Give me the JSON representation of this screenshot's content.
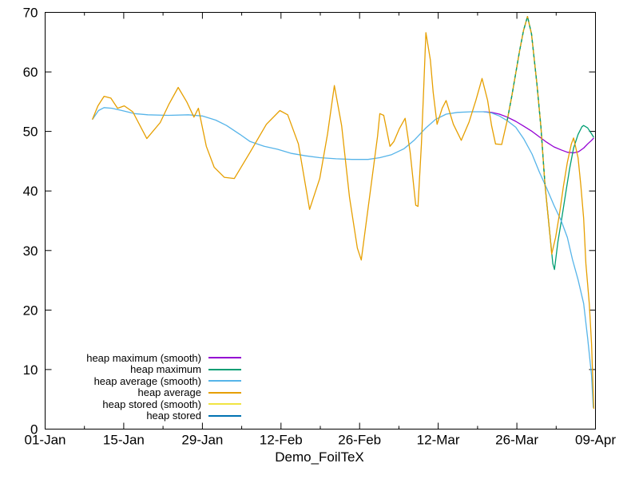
{
  "figure": {
    "background": "#ffffff",
    "border_color": "#000000",
    "text_color": "#000000"
  },
  "chart_data": {
    "type": "line",
    "title": "",
    "xlabel": "Demo_FoilTeX",
    "ylabel": "",
    "grid": false,
    "legend_position": "bottom-left-inside",
    "x_axis": {
      "range_days": [
        0,
        98
      ],
      "ticks": [
        {
          "day": 0,
          "label": "01-Jan"
        },
        {
          "day": 14,
          "label": "15-Jan"
        },
        {
          "day": 28,
          "label": "29-Jan"
        },
        {
          "day": 42,
          "label": "12-Feb"
        },
        {
          "day": 56,
          "label": "26-Feb"
        },
        {
          "day": 70,
          "label": "12-Mar"
        },
        {
          "day": 84,
          "label": "26-Mar"
        },
        {
          "day": 98,
          "label": "09-Apr"
        }
      ],
      "minor_tick_days": [
        7,
        21,
        35,
        49,
        63,
        77,
        91
      ]
    },
    "y_axis": {
      "range": [
        0,
        70
      ],
      "ticks": [
        0,
        10,
        20,
        30,
        40,
        50,
        60,
        70
      ]
    },
    "series": [
      {
        "name": "heap maximum (smooth)",
        "color": "#9400d3",
        "points": [
          [
            78.1,
            53.3
          ],
          [
            79.5,
            53.2
          ],
          [
            80.9,
            52.9
          ],
          [
            82.3,
            52.4
          ],
          [
            83.8,
            51.7
          ],
          [
            85.2,
            50.9
          ],
          [
            86.7,
            50.0
          ],
          [
            88.0,
            49.1
          ],
          [
            89.3,
            48.2
          ],
          [
            90.6,
            47.4
          ],
          [
            91.9,
            46.9
          ],
          [
            93.0,
            46.5
          ],
          [
            94.1,
            46.4
          ],
          [
            95.0,
            46.6
          ],
          [
            95.9,
            47.2
          ],
          [
            96.6,
            47.9
          ],
          [
            97.3,
            48.5
          ],
          [
            97.7,
            48.9
          ]
        ]
      },
      {
        "name": "heap maximum",
        "color": "#009e73",
        "dash_overlap_day_range": [
          82.3,
          89.0
        ],
        "points": [
          [
            82.3,
            51.9
          ],
          [
            83.1,
            55.9
          ],
          [
            84.5,
            63.6
          ],
          [
            85.2,
            67.0
          ],
          [
            85.9,
            69.3
          ],
          [
            86.6,
            66.4
          ],
          [
            87.6,
            57.7
          ],
          [
            88.3,
            50.6
          ],
          [
            89.0,
            41.2
          ],
          [
            89.9,
            32.5
          ],
          [
            90.4,
            27.8
          ],
          [
            90.7,
            26.8
          ],
          [
            91.3,
            31.4
          ],
          [
            92.0,
            35.4
          ],
          [
            92.7,
            39.6
          ],
          [
            93.4,
            43.8
          ],
          [
            94.1,
            47.2
          ],
          [
            94.9,
            49.5
          ],
          [
            95.6,
            50.8
          ],
          [
            95.9,
            51.0
          ],
          [
            96.6,
            50.6
          ],
          [
            97.3,
            49.6
          ],
          [
            97.7,
            49.0
          ]
        ]
      },
      {
        "name": "heap average (smooth)",
        "color": "#56b4e9",
        "points": [
          [
            8.4,
            52.0
          ],
          [
            9.5,
            53.5
          ],
          [
            10.5,
            54.0
          ],
          [
            11.9,
            53.9
          ],
          [
            13.7,
            53.5
          ],
          [
            15.9,
            53.0
          ],
          [
            18.3,
            52.8
          ],
          [
            21.9,
            52.7
          ],
          [
            25.5,
            52.8
          ],
          [
            28.0,
            52.6
          ],
          [
            30.4,
            51.9
          ],
          [
            32.3,
            51.0
          ],
          [
            34.7,
            49.5
          ],
          [
            36.5,
            48.3
          ],
          [
            39.0,
            47.5
          ],
          [
            41.4,
            47.0
          ],
          [
            43.9,
            46.3
          ],
          [
            46.4,
            45.9
          ],
          [
            48.9,
            45.6
          ],
          [
            51.8,
            45.4
          ],
          [
            54.6,
            45.3
          ],
          [
            57.5,
            45.3
          ],
          [
            59.6,
            45.6
          ],
          [
            61.7,
            46.1
          ],
          [
            63.9,
            47.1
          ],
          [
            65.7,
            48.5
          ],
          [
            67.7,
            50.5
          ],
          [
            69.5,
            52.0
          ],
          [
            71.4,
            52.9
          ],
          [
            73.4,
            53.2
          ],
          [
            75.9,
            53.3
          ],
          [
            78.1,
            53.3
          ],
          [
            79.5,
            53.1
          ],
          [
            80.9,
            52.6
          ],
          [
            82.3,
            51.8
          ],
          [
            83.8,
            50.7
          ],
          [
            85.2,
            48.8
          ],
          [
            86.7,
            46.2
          ],
          [
            88.0,
            43.2
          ],
          [
            89.3,
            40.5
          ],
          [
            90.6,
            37.6
          ],
          [
            91.9,
            35.0
          ],
          [
            93.0,
            32.2
          ],
          [
            93.9,
            28.5
          ],
          [
            94.9,
            25.1
          ],
          [
            95.9,
            21.1
          ],
          [
            96.6,
            15.3
          ],
          [
            97.3,
            9.0
          ],
          [
            97.6,
            3.6
          ]
        ]
      },
      {
        "name": "heap average",
        "color": "#e69f00",
        "points": [
          [
            8.4,
            52.0
          ],
          [
            9.4,
            54.3
          ],
          [
            10.5,
            55.9
          ],
          [
            11.7,
            55.6
          ],
          [
            12.9,
            53.9
          ],
          [
            14.1,
            54.3
          ],
          [
            15.6,
            53.3
          ],
          [
            18.1,
            48.8
          ],
          [
            20.5,
            51.5
          ],
          [
            22.0,
            54.5
          ],
          [
            23.7,
            57.4
          ],
          [
            25.2,
            55.0
          ],
          [
            26.5,
            52.4
          ],
          [
            27.3,
            53.9
          ],
          [
            28.7,
            47.5
          ],
          [
            30.1,
            44.0
          ],
          [
            31.9,
            42.3
          ],
          [
            33.7,
            42.1
          ],
          [
            36.5,
            46.5
          ],
          [
            39.4,
            51.2
          ],
          [
            41.8,
            53.5
          ],
          [
            43.2,
            52.8
          ],
          [
            45.1,
            47.9
          ],
          [
            47.1,
            36.9
          ],
          [
            48.9,
            42.1
          ],
          [
            50.3,
            49.6
          ],
          [
            51.5,
            57.7
          ],
          [
            52.8,
            51.0
          ],
          [
            54.2,
            38.9
          ],
          [
            55.6,
            30.4
          ],
          [
            56.3,
            28.4
          ],
          [
            57.7,
            38.5
          ],
          [
            59.2,
            49.2
          ],
          [
            59.6,
            53.0
          ],
          [
            60.3,
            52.7
          ],
          [
            61.4,
            47.5
          ],
          [
            62.1,
            48.3
          ],
          [
            63.1,
            50.5
          ],
          [
            64.1,
            52.2
          ],
          [
            65.0,
            46.5
          ],
          [
            66.0,
            37.6
          ],
          [
            66.4,
            37.4
          ],
          [
            67.0,
            47.9
          ],
          [
            67.4,
            57.0
          ],
          [
            67.8,
            66.6
          ],
          [
            68.6,
            62.0
          ],
          [
            69.1,
            56.6
          ],
          [
            69.8,
            51.2
          ],
          [
            70.7,
            53.9
          ],
          [
            71.4,
            55.2
          ],
          [
            72.7,
            51.2
          ],
          [
            74.1,
            48.5
          ],
          [
            75.5,
            51.6
          ],
          [
            76.7,
            55.2
          ],
          [
            77.8,
            58.9
          ],
          [
            78.8,
            55.2
          ],
          [
            79.5,
            51.0
          ],
          [
            80.2,
            47.9
          ],
          [
            81.3,
            47.8
          ],
          [
            82.3,
            51.9
          ],
          [
            83.1,
            55.9
          ],
          [
            84.5,
            63.6
          ],
          [
            85.2,
            67.0
          ],
          [
            85.9,
            69.3
          ],
          [
            86.6,
            66.4
          ],
          [
            87.6,
            57.7
          ],
          [
            88.3,
            50.6
          ],
          [
            89.0,
            41.2
          ],
          [
            89.9,
            32.5
          ],
          [
            90.2,
            29.4
          ],
          [
            90.9,
            32.2
          ],
          [
            91.6,
            36.2
          ],
          [
            92.3,
            40.8
          ],
          [
            93.0,
            44.8
          ],
          [
            93.7,
            47.9
          ],
          [
            94.1,
            48.9
          ],
          [
            94.9,
            45.6
          ],
          [
            95.4,
            40.9
          ],
          [
            95.9,
            35.4
          ],
          [
            96.3,
            27.8
          ],
          [
            96.9,
            21.0
          ],
          [
            97.3,
            14.3
          ],
          [
            97.7,
            3.4
          ]
        ]
      },
      {
        "name": "heap stored (smooth)",
        "color": "#f0e442",
        "hidden": true,
        "points": []
      },
      {
        "name": "heap stored",
        "color": "#0072b2",
        "hidden": true,
        "points": []
      }
    ]
  }
}
